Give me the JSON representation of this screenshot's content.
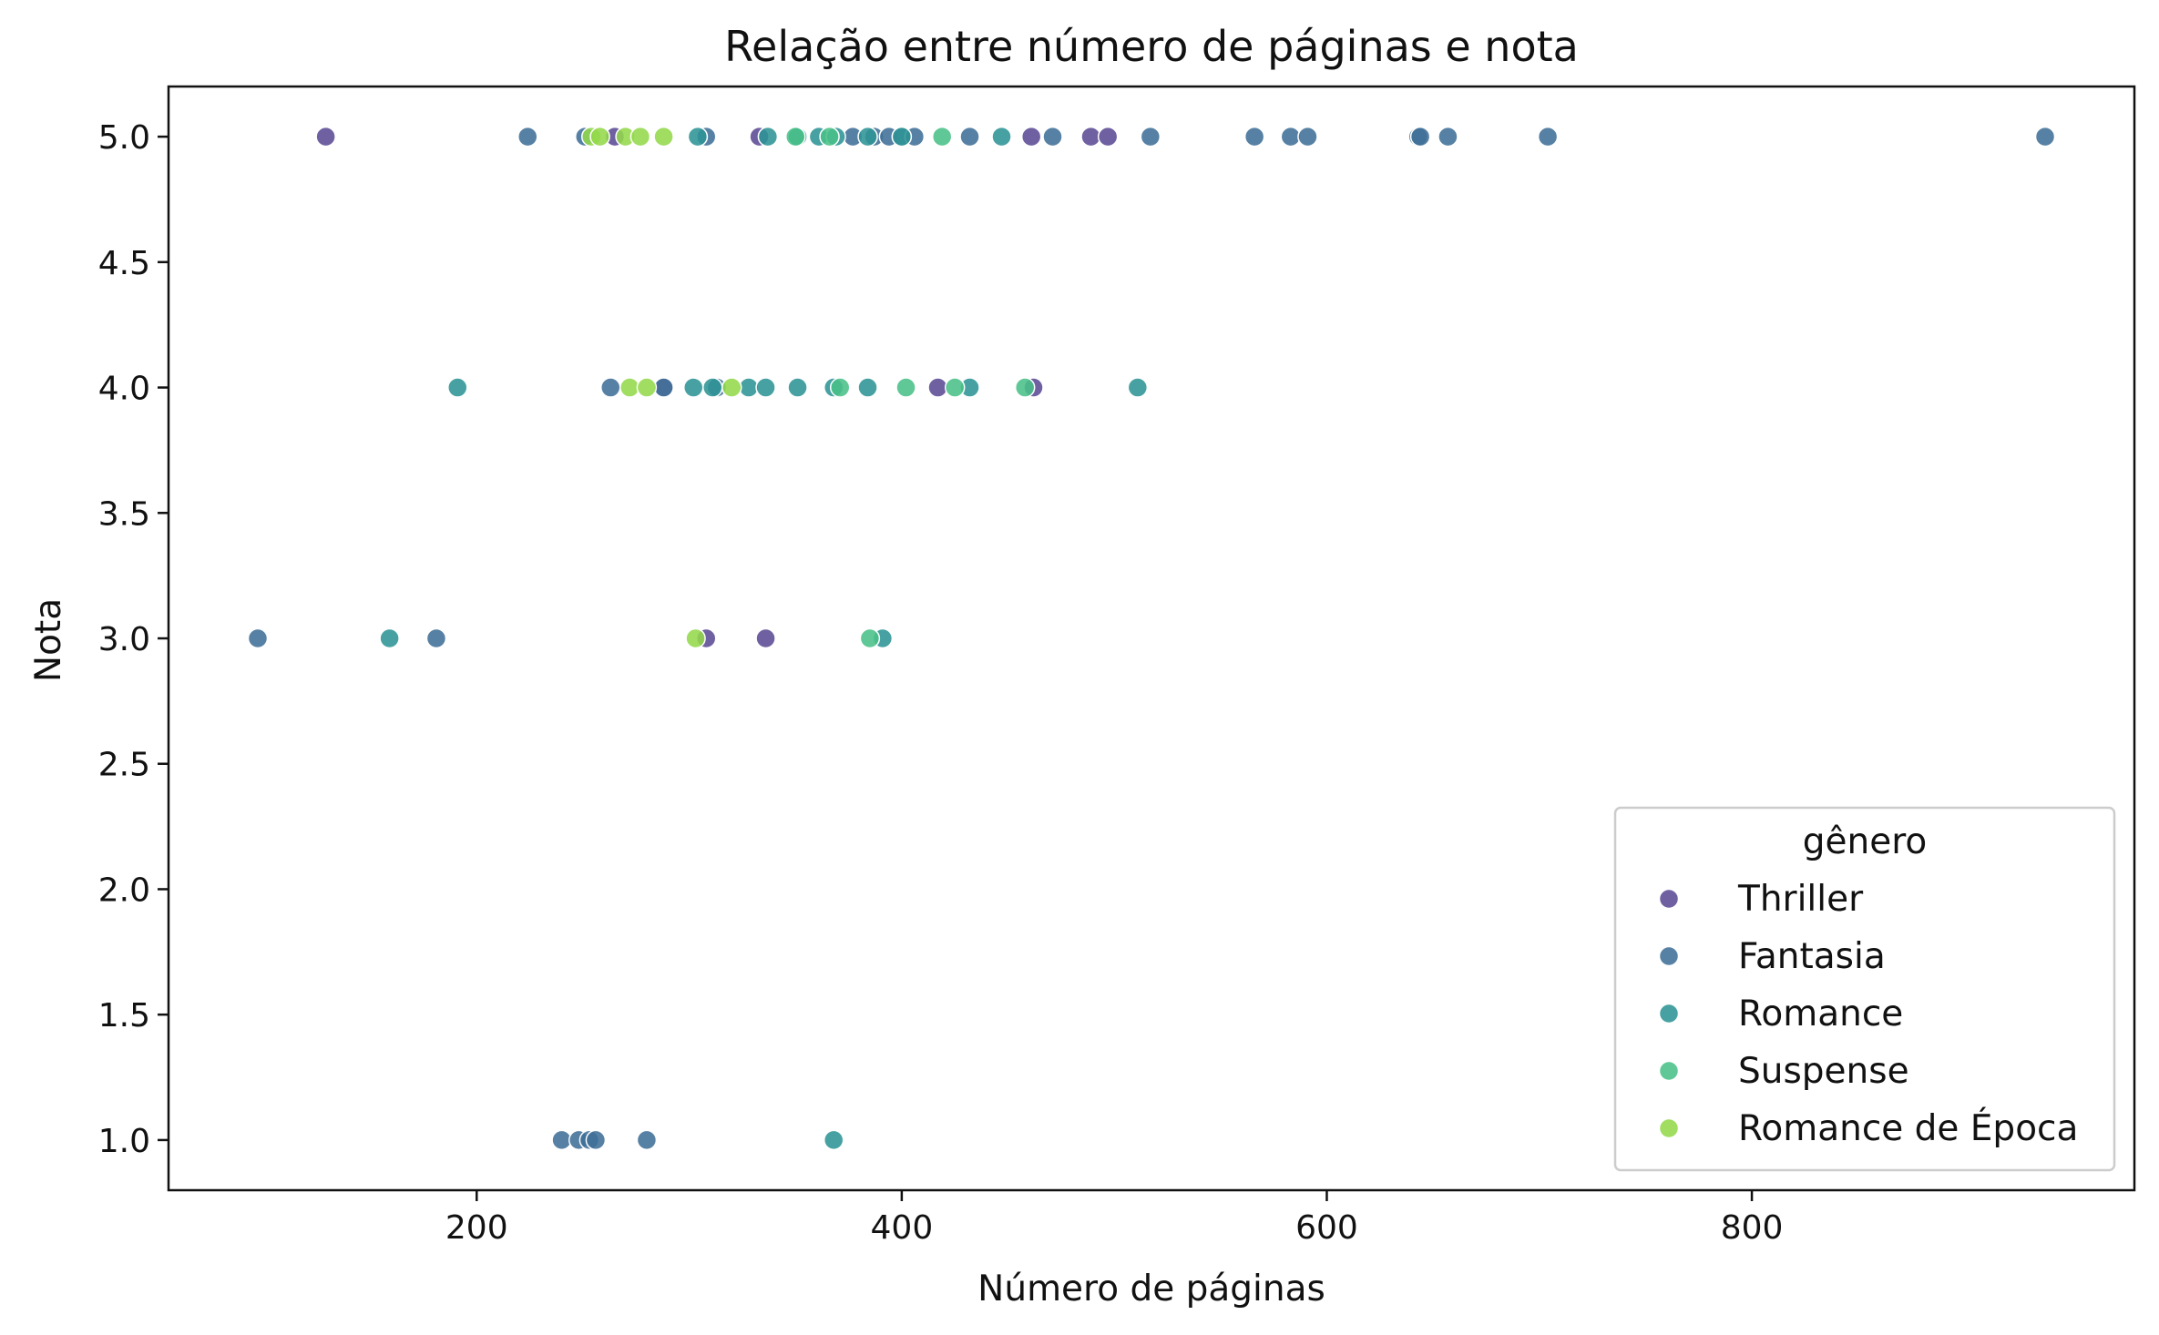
{
  "chart_data": {
    "type": "scatter",
    "title": "Relação entre número de páginas e nota",
    "xlabel": "Número de páginas",
    "ylabel": "Nota",
    "xlim": [
      55,
      980
    ],
    "ylim": [
      0.8,
      5.2
    ],
    "x_ticks": [
      200,
      400,
      600,
      800
    ],
    "y_ticks": [
      1.0,
      1.5,
      2.0,
      2.5,
      3.0,
      3.5,
      4.0,
      4.5,
      5.0
    ],
    "x_tick_labels": [
      "200",
      "400",
      "600",
      "800"
    ],
    "y_tick_labels": [
      "1.0",
      "1.5",
      "2.0",
      "2.5",
      "3.0",
      "3.5",
      "4.0",
      "4.5",
      "5.0"
    ],
    "grid": false,
    "legend": {
      "title": "gênero",
      "position": "lower-right"
    },
    "series": [
      {
        "name": "Thriller",
        "color": "#5b4a94",
        "points": [
          [
            129,
            5
          ],
          [
            265,
            5
          ],
          [
            333,
            5
          ],
          [
            461,
            5
          ],
          [
            489,
            5
          ],
          [
            497,
            5
          ],
          [
            288,
            4
          ],
          [
            417,
            4
          ],
          [
            462,
            4
          ],
          [
            308,
            3
          ],
          [
            336,
            3
          ]
        ]
      },
      {
        "name": "Fantasia",
        "color": "#406f97",
        "points": [
          [
            224,
            5
          ],
          [
            251,
            5
          ],
          [
            308,
            5
          ],
          [
            377,
            5
          ],
          [
            387,
            5
          ],
          [
            394,
            5
          ],
          [
            400,
            5
          ],
          [
            406,
            5
          ],
          [
            432,
            5
          ],
          [
            471,
            5
          ],
          [
            517,
            5
          ],
          [
            566,
            5
          ],
          [
            583,
            5
          ],
          [
            591,
            5
          ],
          [
            643,
            5
          ],
          [
            644,
            5
          ],
          [
            657,
            5
          ],
          [
            704,
            5
          ],
          [
            938,
            5
          ],
          [
            263,
            4
          ],
          [
            288,
            4
          ],
          [
            313,
            4
          ],
          [
            97,
            3
          ],
          [
            181,
            3
          ],
          [
            240,
            1
          ],
          [
            248,
            1
          ],
          [
            253,
            1
          ],
          [
            256,
            1
          ],
          [
            280,
            1
          ]
        ]
      },
      {
        "name": "Romance",
        "color": "#2e9495",
        "points": [
          [
            304,
            5
          ],
          [
            337,
            5
          ],
          [
            351,
            5
          ],
          [
            361,
            5
          ],
          [
            369,
            5
          ],
          [
            384,
            5
          ],
          [
            400,
            5
          ],
          [
            447,
            5
          ],
          [
            191,
            4
          ],
          [
            302,
            4
          ],
          [
            311,
            4
          ],
          [
            328,
            4
          ],
          [
            336,
            4
          ],
          [
            351,
            4
          ],
          [
            368,
            4
          ],
          [
            384,
            4
          ],
          [
            432,
            4
          ],
          [
            511,
            4
          ],
          [
            159,
            3
          ],
          [
            391,
            3
          ],
          [
            368,
            1
          ]
        ]
      },
      {
        "name": "Suspense",
        "color": "#49c088",
        "points": [
          [
            350,
            5
          ],
          [
            366,
            5
          ],
          [
            419,
            5
          ],
          [
            371,
            4
          ],
          [
            402,
            4
          ],
          [
            425,
            4
          ],
          [
            458,
            4
          ],
          [
            385,
            3
          ]
        ]
      },
      {
        "name": "Romance de Época",
        "color": "#93d84a",
        "points": [
          [
            254,
            5
          ],
          [
            258,
            5
          ],
          [
            270,
            5
          ],
          [
            277,
            5
          ],
          [
            288,
            5
          ],
          [
            272,
            4
          ],
          [
            280,
            4
          ],
          [
            320,
            4
          ],
          [
            303,
            3
          ]
        ]
      }
    ]
  }
}
